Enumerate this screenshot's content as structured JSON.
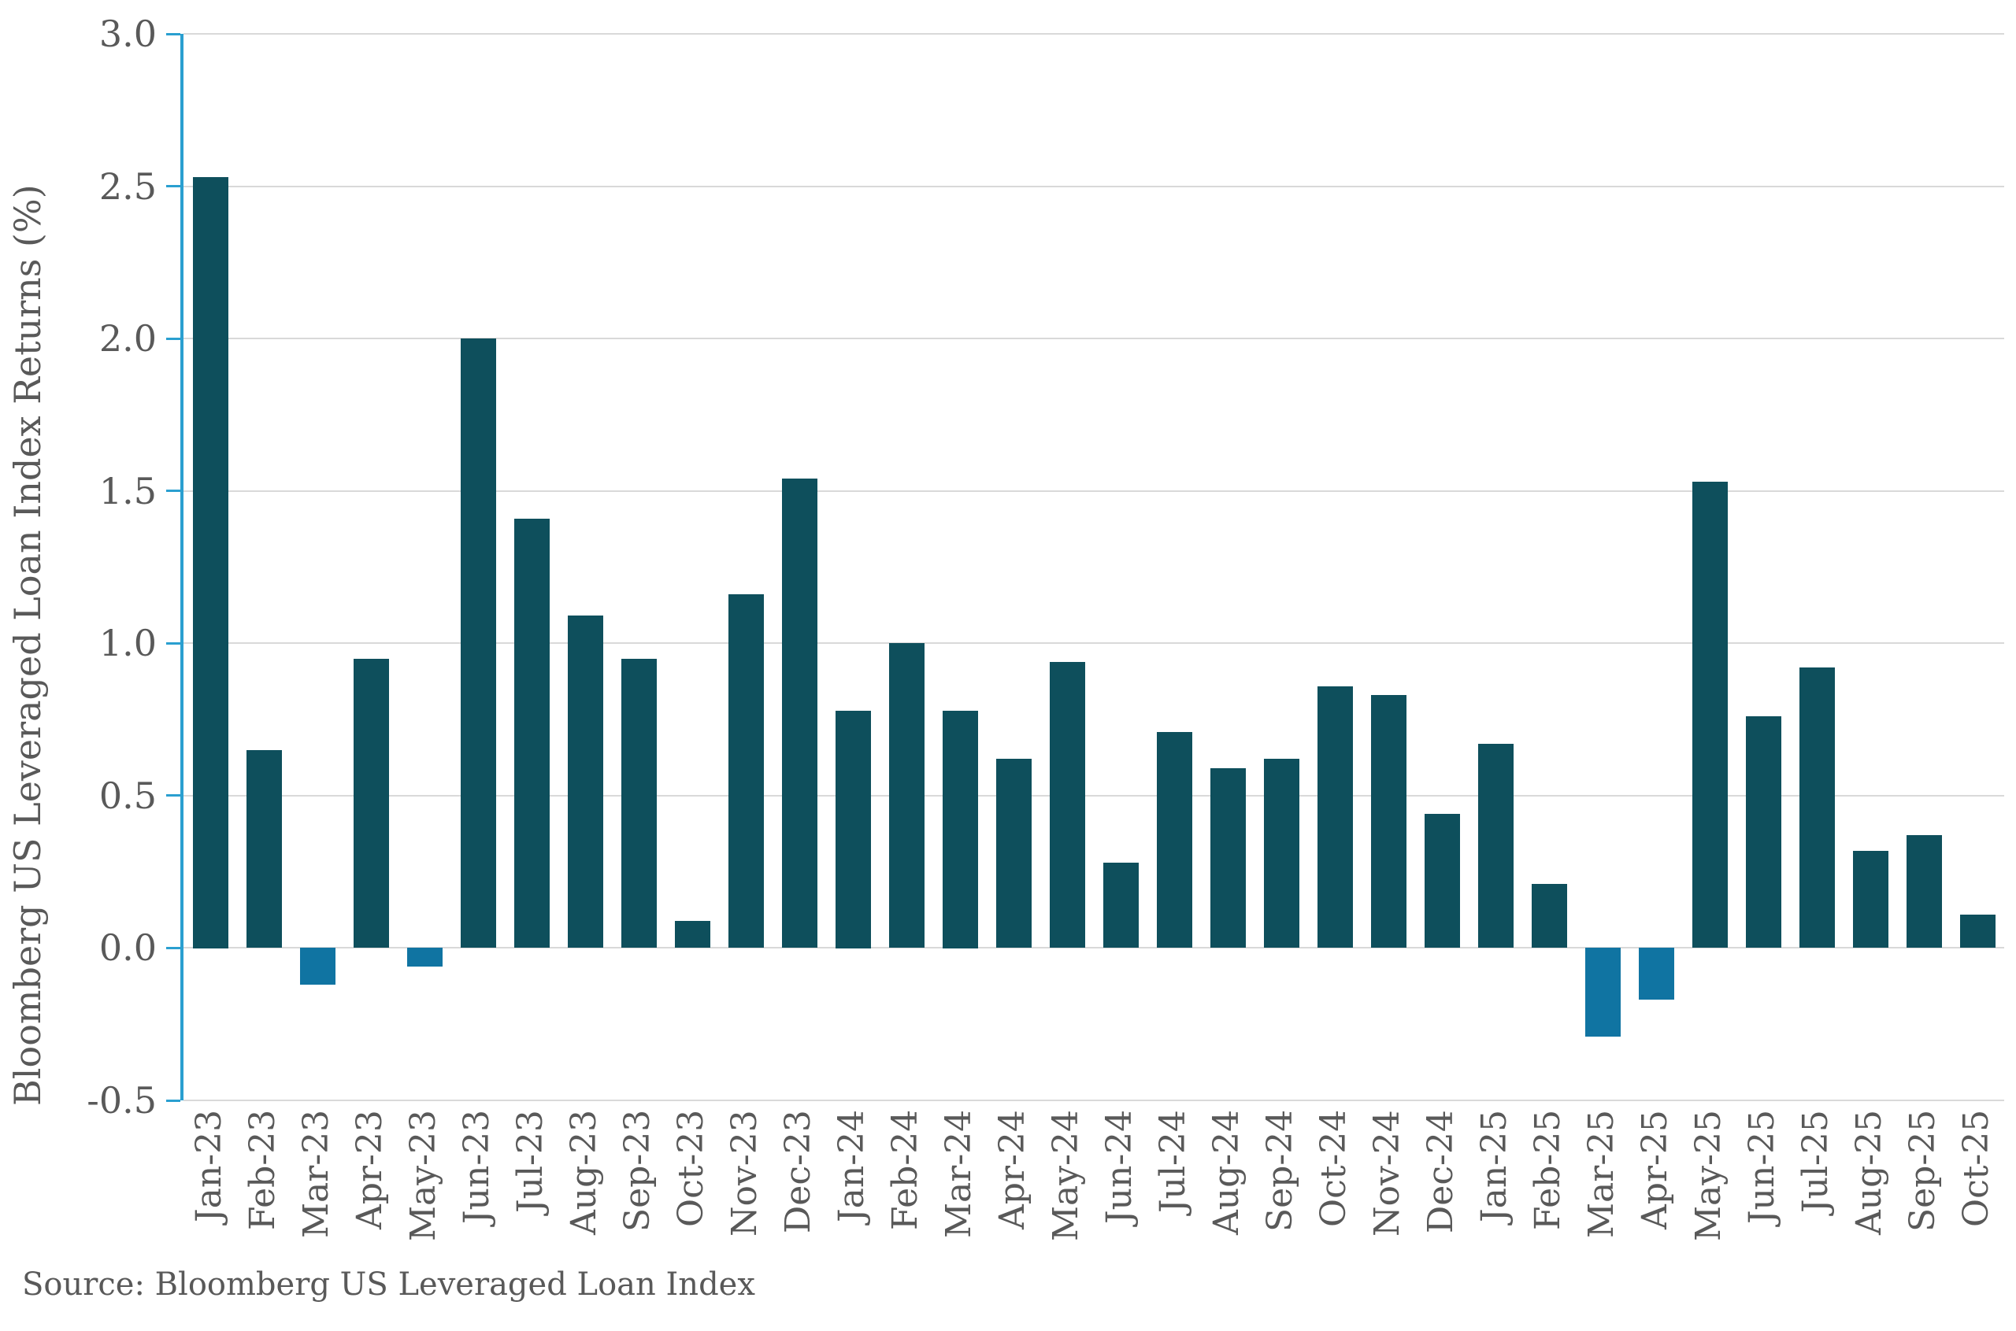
{
  "chart": {
    "y_axis_label": "Bloomberg US Leveraged Loan Index Returns (%)",
    "source": "Source: Bloomberg US Leveraged Loan Index"
  },
  "chart_data": {
    "type": "bar",
    "title": "",
    "xlabel": "",
    "ylabel": "Bloomberg US Leveraged Loan Index Returns (%)",
    "source_note": "Source: Bloomberg US Leveraged Loan Index",
    "legend": "none",
    "grid": "horizontal gridlines every 0.5",
    "ylim": [
      -0.5,
      3.0
    ],
    "ytick_step": 0.5,
    "categories": [
      "Jan-23",
      "Feb-23",
      "Mar-23",
      "Apr-23",
      "May-23",
      "Jun-23",
      "Jul-23",
      "Aug-23",
      "Sep-23",
      "Oct-23",
      "Nov-23",
      "Dec-23",
      "Jan-24",
      "Feb-24",
      "Mar-24",
      "Apr-24",
      "May-24",
      "Jun-24",
      "Jul-24",
      "Aug-24",
      "Sep-24",
      "Oct-24",
      "Nov-24",
      "Dec-24",
      "Jan-25",
      "Feb-25",
      "Mar-25",
      "Apr-25",
      "May-25",
      "Jun-25",
      "Jul-25",
      "Aug-25",
      "Sep-25",
      "Oct-25"
    ],
    "values": [
      2.53,
      0.65,
      -0.12,
      0.95,
      -0.06,
      2.0,
      1.41,
      1.09,
      0.95,
      0.09,
      1.16,
      1.54,
      0.78,
      1.0,
      0.78,
      0.62,
      0.94,
      0.28,
      0.71,
      0.59,
      0.62,
      0.86,
      0.83,
      0.44,
      0.67,
      0.21,
      -0.29,
      -0.17,
      1.53,
      0.76,
      0.92,
      0.32,
      0.37,
      0.11
    ],
    "colors": {
      "bar_positive": "#0E4F5C",
      "bar_negative": "#1074A2",
      "axis_line": "#2A9FD0",
      "gridline": "#D9D9D9",
      "text": "#595959"
    }
  }
}
